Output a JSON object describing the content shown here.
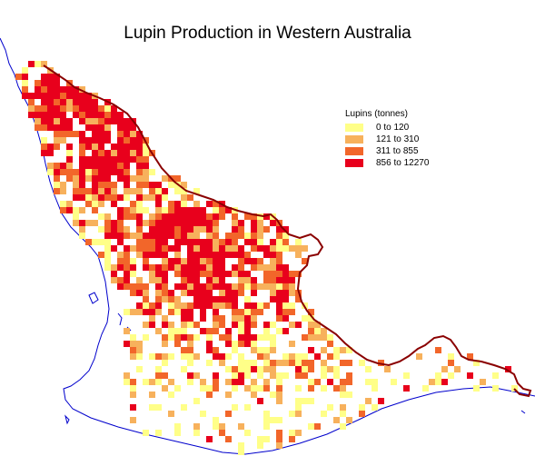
{
  "title": "Lupin Production in Western Australia",
  "legend": {
    "title": "Lupins (tonnes)",
    "classes": [
      {
        "label": "0 to 120",
        "color": "#ffff88"
      },
      {
        "label": "121 to 310",
        "color": "#f7b15c"
      },
      {
        "label": "311 to 855",
        "color": "#f2662a"
      },
      {
        "label": "856 to 12270",
        "color": "#e8001c"
      }
    ]
  },
  "colors": {
    "coastline": "#0000cc",
    "boundary": "#8a0000",
    "background": "#ffffff"
  }
}
